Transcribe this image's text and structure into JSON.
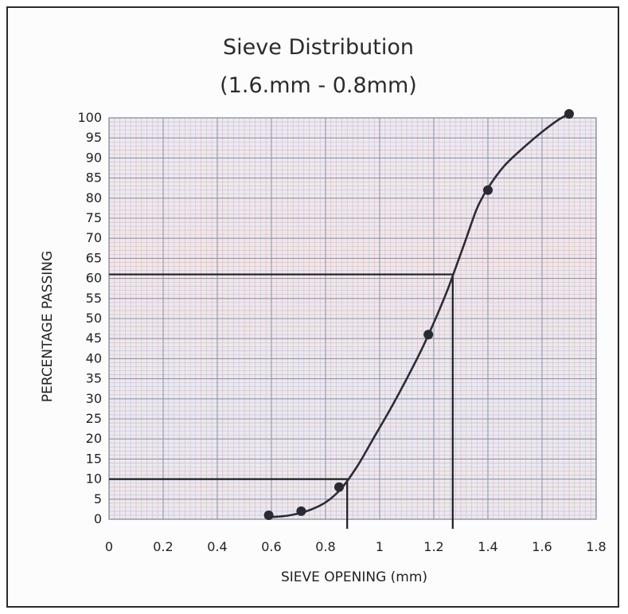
{
  "chart_data": {
    "type": "scatter",
    "title": "Sieve Distribution",
    "subtitle": "(1.6.mm - 0.8mm)",
    "xlabel": "SIEVE OPENING (mm)",
    "ylabel": "PERCENTAGE PASSING",
    "xlim": [
      0,
      1.8
    ],
    "ylim": [
      0,
      100
    ],
    "x_ticks": [
      "0",
      "0.2",
      "0.4",
      "0.6",
      "0.8",
      "1",
      "1.2",
      "1.4",
      "1.6",
      "1.8"
    ],
    "y_ticks": [
      "0",
      "5",
      "10",
      "15",
      "20",
      "25",
      "30",
      "35",
      "40",
      "45",
      "50",
      "55",
      "60",
      "65",
      "70",
      "75",
      "80",
      "85",
      "90",
      "95",
      "100"
    ],
    "grid": true,
    "series": [
      {
        "points": [
          {
            "x": 0.59,
            "y": 1
          },
          {
            "x": 0.71,
            "y": 2
          },
          {
            "x": 0.85,
            "y": 8
          },
          {
            "x": 1.18,
            "y": 46
          },
          {
            "x": 1.4,
            "y": 82
          },
          {
            "x": 1.7,
            "y": 101
          }
        ],
        "curve": [
          [
            0.59,
            0.5
          ],
          [
            0.66,
            0.9
          ],
          [
            0.73,
            2.0
          ],
          [
            0.8,
            4.2
          ],
          [
            0.86,
            7.8
          ],
          [
            0.92,
            13.5
          ],
          [
            0.98,
            20.5
          ],
          [
            1.04,
            27.5
          ],
          [
            1.1,
            35.0
          ],
          [
            1.16,
            43.0
          ],
          [
            1.21,
            50.5
          ],
          [
            1.25,
            57.0
          ],
          [
            1.28,
            62.5
          ],
          [
            1.32,
            70.0
          ],
          [
            1.36,
            77.5
          ],
          [
            1.4,
            82.5
          ],
          [
            1.46,
            88.0
          ],
          [
            1.53,
            92.5
          ],
          [
            1.6,
            96.5
          ],
          [
            1.66,
            99.5
          ],
          [
            1.7,
            101.0
          ]
        ],
        "color": "#2c2c38"
      }
    ],
    "reference_lines": [
      {
        "y": 10,
        "x": 0.88
      },
      {
        "y": 61,
        "x": 1.27
      }
    ]
  }
}
